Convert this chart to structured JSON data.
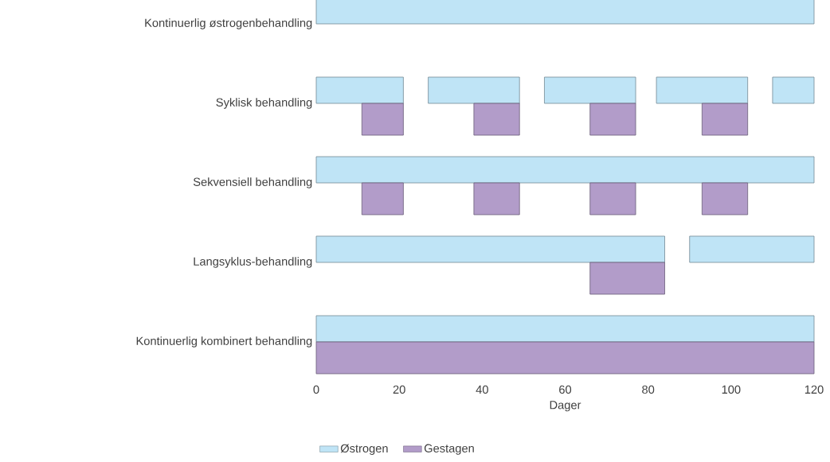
{
  "chart_data": {
    "type": "bar",
    "orientation": "horizontal",
    "xlabel": "Dager",
    "legend": "bottom",
    "categories": [
      "Kontinuerlig østrogenbehandling",
      "Syklisk behandling",
      "Sekvensiell behandling",
      "Langsyklus-behandling",
      "Kontinuerlig kombinert behandling"
    ],
    "xlim": [
      0,
      120
    ],
    "xticks": [
      0,
      20,
      40,
      60,
      80,
      100,
      120
    ],
    "series": [
      {
        "name": "Østrogen",
        "color": "#bfe4f6",
        "base": [
          0,
          0,
          0,
          0,
          0
        ],
        "values": [
          120,
          21,
          120,
          84,
          120
        ]
      },
      {
        "color": "#bfe4f6",
        "base": [
          null,
          27,
          null,
          90,
          null
        ],
        "values": [
          null,
          22,
          null,
          30,
          null
        ]
      },
      {
        "color": "#bfe4f6",
        "base": [
          null,
          55,
          null,
          null,
          null
        ],
        "values": [
          null,
          22,
          null,
          null,
          null
        ]
      },
      {
        "color": "#bfe4f6",
        "base": [
          null,
          82,
          null,
          null,
          null
        ],
        "values": [
          null,
          22,
          null,
          null,
          null
        ]
      },
      {
        "color": "#bfe4f6",
        "base": [
          null,
          110,
          null,
          null,
          null
        ],
        "values": [
          null,
          10,
          null,
          null,
          null
        ]
      },
      {
        "name": "Gestagen",
        "color": "#b29cc9",
        "base": [
          null,
          11,
          11,
          66,
          0
        ],
        "values": [
          null,
          10,
          10,
          18,
          120
        ]
      },
      {
        "color": "#b29cc9",
        "base": [
          null,
          38,
          38,
          null,
          null
        ],
        "values": [
          null,
          11,
          11,
          null,
          null
        ]
      },
      {
        "color": "#b29cc9",
        "base": [
          null,
          66,
          66,
          null,
          null
        ],
        "values": [
          null,
          11,
          11,
          null,
          null
        ]
      },
      {
        "color": "#b29cc9",
        "base": [
          null,
          93,
          93,
          null,
          null
        ],
        "values": [
          null,
          11,
          11,
          null,
          null
        ]
      }
    ]
  }
}
